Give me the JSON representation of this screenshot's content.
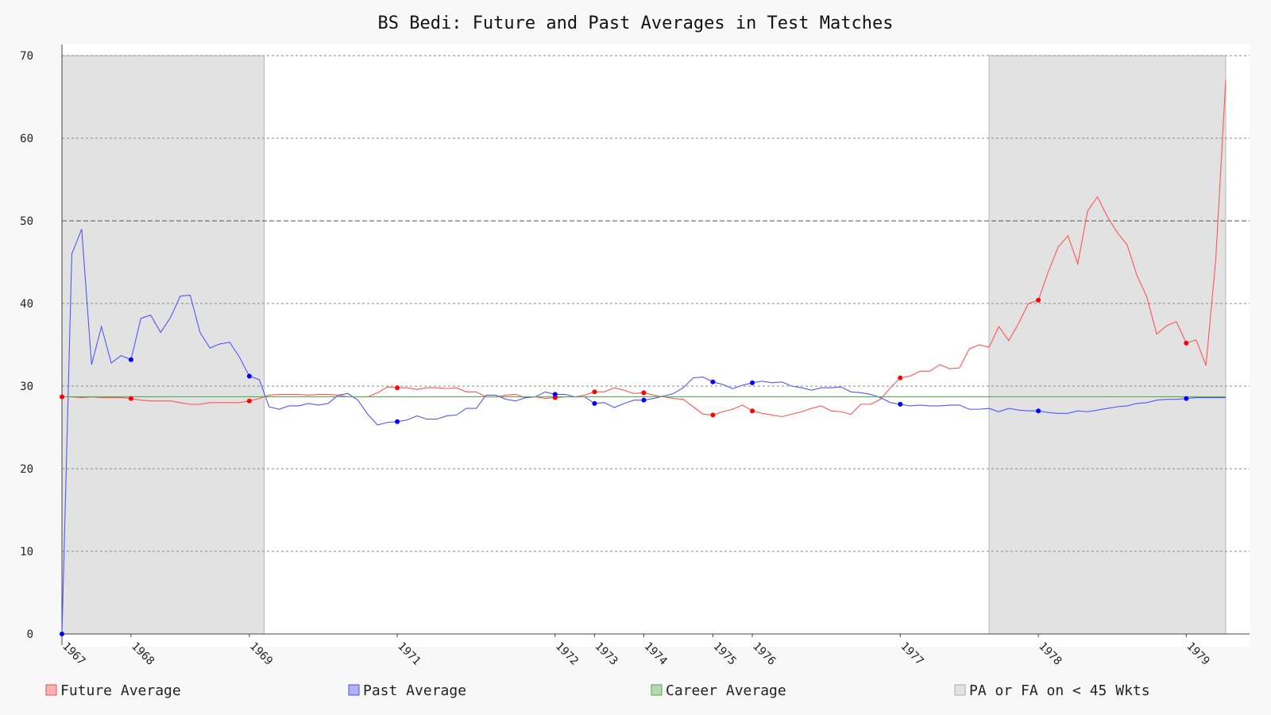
{
  "chart_data": {
    "type": "line",
    "title": "BS Bedi: Future and Past Averages in Test Matches",
    "xlabel": "",
    "ylabel": "",
    "ylim": [
      0,
      70
    ],
    "y_ticks": [
      0,
      10,
      20,
      30,
      40,
      50,
      60,
      70
    ],
    "grid": true,
    "legend_placement": "bottom",
    "match_count": 118,
    "x_tick_labels": [
      {
        "match": 0,
        "label": "1967"
      },
      {
        "match": 7,
        "label": "1968"
      },
      {
        "match": 19,
        "label": "1969"
      },
      {
        "match": 34,
        "label": "1971"
      },
      {
        "match": 50,
        "label": "1972"
      },
      {
        "match": 54,
        "label": "1973"
      },
      {
        "match": 59,
        "label": "1974"
      },
      {
        "match": 66,
        "label": "1975"
      },
      {
        "match": 70,
        "label": "1976"
      },
      {
        "match": 85,
        "label": "1977"
      },
      {
        "match": 99,
        "label": "1978"
      },
      {
        "match": 114,
        "label": "1979"
      }
    ],
    "series": [
      {
        "name": "Future Average",
        "color": "#ff5555",
        "marker_color": "#ff0000",
        "values": [
          28.7,
          28.7,
          28.6,
          28.7,
          28.6,
          28.6,
          28.6,
          28.5,
          28.3,
          28.2,
          28.2,
          28.2,
          28.0,
          27.8,
          27.8,
          28.0,
          28.0,
          28.0,
          28.0,
          28.2,
          28.5,
          28.9,
          29.0,
          29.0,
          29.0,
          28.9,
          29.0,
          29.0,
          28.9,
          28.7,
          28.7,
          28.7,
          29.2,
          29.9,
          29.8,
          29.8,
          29.6,
          29.8,
          29.8,
          29.7,
          29.8,
          29.3,
          29.3,
          28.7,
          28.7,
          28.9,
          29.0,
          28.6,
          28.7,
          28.5,
          28.6,
          28.7,
          28.7,
          28.9,
          29.3,
          29.3,
          29.8,
          29.5,
          29.1,
          29.2,
          28.9,
          28.7,
          28.5,
          28.4,
          27.5,
          26.6,
          26.5,
          26.9,
          27.2,
          27.7,
          27.0,
          26.7,
          26.5,
          26.3,
          26.6,
          26.9,
          27.3,
          27.6,
          27.0,
          26.9,
          26.6,
          27.8,
          27.8,
          28.4,
          29.8,
          31.0,
          31.2,
          31.8,
          31.8,
          32.6,
          32.1,
          32.2,
          34.5,
          35.0,
          34.7,
          37.2,
          35.5,
          37.6,
          40.0,
          40.4,
          43.8,
          46.8,
          48.2,
          44.8,
          51.2,
          52.9,
          50.5,
          48.6,
          47.1,
          43.4,
          40.8,
          36.3,
          37.3,
          37.8,
          35.2,
          35.6,
          32.5,
          45.5,
          67.0
        ]
      },
      {
        "name": "Past Average",
        "color": "#5555ff",
        "marker_color": "#0000ff",
        "values": [
          0.0,
          46.0,
          49.0,
          32.6,
          37.2,
          32.8,
          33.7,
          33.2,
          38.2,
          38.6,
          36.5,
          38.3,
          40.9,
          41.0,
          36.5,
          34.6,
          35.1,
          35.3,
          33.5,
          31.2,
          30.8,
          27.5,
          27.2,
          27.6,
          27.6,
          27.9,
          27.7,
          27.9,
          28.9,
          29.1,
          28.3,
          26.6,
          25.3,
          25.6,
          25.7,
          25.9,
          26.4,
          26.0,
          26.0,
          26.4,
          26.5,
          27.3,
          27.3,
          28.9,
          28.9,
          28.4,
          28.2,
          28.6,
          28.7,
          29.3,
          29.0,
          29.0,
          28.7,
          28.7,
          27.9,
          28.0,
          27.4,
          27.9,
          28.3,
          28.3,
          28.5,
          28.8,
          29.1,
          29.8,
          31.0,
          31.1,
          30.5,
          30.2,
          29.7,
          30.1,
          30.4,
          30.6,
          30.4,
          30.5,
          30.0,
          29.8,
          29.5,
          29.8,
          29.8,
          29.9,
          29.3,
          29.2,
          29.0,
          28.6,
          28.0,
          27.8,
          27.6,
          27.7,
          27.6,
          27.6,
          27.7,
          27.7,
          27.2,
          27.2,
          27.3,
          26.9,
          27.3,
          27.1,
          27.0,
          27.0,
          26.8,
          26.7,
          26.7,
          27.0,
          26.9,
          27.1,
          27.3,
          27.5,
          27.6,
          27.9,
          28.0,
          28.3,
          28.4,
          28.4,
          28.5,
          28.6,
          28.6,
          28.6,
          28.6
        ]
      },
      {
        "name": "Career Average",
        "color": "#55aa55",
        "values": [
          28.71
        ]
      }
    ],
    "markers": [
      0,
      7,
      19,
      34,
      50,
      54,
      59,
      66,
      70,
      85,
      99,
      114
    ],
    "shaded_regions": {
      "name": "PA or FA on < 45 Wkts",
      "color": "#e2e2e2",
      "regions": [
        {
          "start_match": 0,
          "end_match": 20.5
        },
        {
          "start_match": 94,
          "end_match": 118
        }
      ]
    }
  }
}
